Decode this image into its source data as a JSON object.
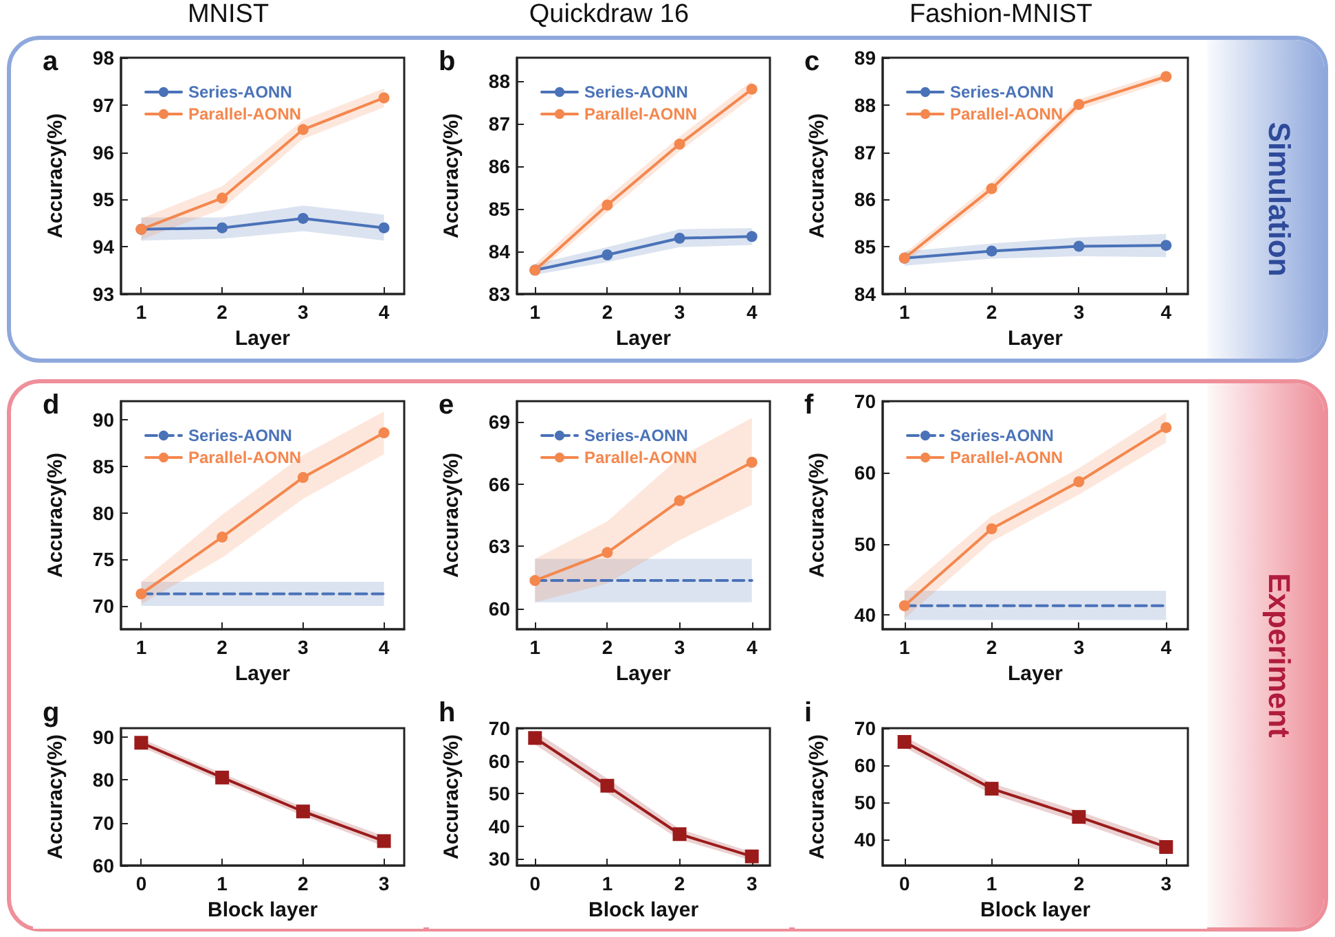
{
  "chart_data": [
    {
      "type": "line",
      "title": "a",
      "xlabel": "Layer",
      "ylabel": "Accuracy(%)",
      "annotations": [
        "MNIST"
      ],
      "x": [
        1,
        2,
        3,
        4
      ],
      "xlim": [
        0.75,
        4.25
      ],
      "xticks": [
        1,
        2,
        3,
        4
      ],
      "ylim": [
        93,
        98
      ],
      "yticks": [
        93,
        94,
        95,
        96,
        97,
        98
      ],
      "legend": "top left",
      "grid": false,
      "series": [
        {
          "name": "Series-AONN",
          "color": "#4a72b8",
          "marker": "circle",
          "values": [
            94.37,
            94.4,
            94.6,
            94.4
          ],
          "lower": [
            94.13,
            94.17,
            94.33,
            94.13
          ],
          "upper": [
            94.62,
            94.62,
            94.87,
            94.68
          ]
        },
        {
          "name": "Parallel-AONN",
          "color": "#f4874e",
          "marker": "circle",
          "values": [
            94.37,
            95.03,
            96.48,
            97.15
          ],
          "lower": [
            94.15,
            94.8,
            96.28,
            96.95
          ],
          "upper": [
            94.6,
            95.28,
            96.68,
            97.35
          ]
        }
      ]
    },
    {
      "type": "line",
      "title": "b",
      "xlabel": "Layer",
      "ylabel": "Accuracy(%)",
      "annotations": [
        "Quickdraw 16"
      ],
      "x": [
        1,
        2,
        3,
        4
      ],
      "xlim": [
        0.75,
        4.25
      ],
      "xticks": [
        1,
        2,
        3,
        4
      ],
      "ylim": [
        83,
        88.55
      ],
      "yticks": [
        83,
        84,
        85,
        86,
        87,
        88
      ],
      "legend": "top left",
      "grid": false,
      "series": [
        {
          "name": "Series-AONN",
          "color": "#4a72b8",
          "marker": "circle",
          "values": [
            83.56,
            83.92,
            84.31,
            84.35
          ],
          "lower": [
            83.45,
            83.75,
            84.1,
            84.15
          ],
          "upper": [
            83.7,
            84.1,
            84.52,
            84.55
          ]
        },
        {
          "name": "Parallel-AONN",
          "color": "#f4874e",
          "marker": "circle",
          "values": [
            83.56,
            85.09,
            86.52,
            87.81
          ],
          "lower": [
            83.45,
            84.92,
            86.35,
            87.62
          ],
          "upper": [
            83.7,
            85.27,
            86.7,
            88.0
          ]
        }
      ]
    },
    {
      "type": "line",
      "title": "c",
      "xlabel": "Layer",
      "ylabel": "Accuracy(%)",
      "annotations": [
        "Fashion-MNIST",
        "Simulation"
      ],
      "x": [
        1,
        2,
        3,
        4
      ],
      "xlim": [
        0.75,
        4.25
      ],
      "xticks": [
        1,
        2,
        3,
        4
      ],
      "ylim": [
        84,
        89
      ],
      "yticks": [
        84,
        85,
        86,
        87,
        88,
        89
      ],
      "legend": "top left",
      "grid": false,
      "series": [
        {
          "name": "Series-AONN",
          "color": "#4a72b8",
          "marker": "circle",
          "values": [
            84.76,
            84.91,
            85.01,
            85.03
          ],
          "lower": [
            84.6,
            84.75,
            84.8,
            84.78
          ],
          "upper": [
            84.9,
            85.07,
            85.2,
            85.27
          ]
        },
        {
          "name": "Parallel-AONN",
          "color": "#f4874e",
          "marker": "circle",
          "values": [
            84.76,
            86.23,
            88.01,
            88.6
          ],
          "lower": [
            84.66,
            86.1,
            87.9,
            88.5
          ],
          "upper": [
            84.86,
            86.36,
            88.12,
            88.7
          ]
        }
      ]
    },
    {
      "type": "line",
      "title": "d",
      "xlabel": "Layer",
      "ylabel": "Accuracy(%)",
      "x": [
        1,
        2,
        3,
        4
      ],
      "xlim": [
        0.75,
        4.25
      ],
      "xticks": [
        1,
        2,
        3,
        4
      ],
      "ylim": [
        67.5,
        92
      ],
      "yticks": [
        70,
        75,
        80,
        85,
        90
      ],
      "legend": "top left",
      "grid": false,
      "series": [
        {
          "name": "Series-AONN",
          "color": "#4a72b8",
          "marker": "none",
          "line_style": "dashed",
          "values": [
            71.3,
            71.3,
            71.3,
            71.3
          ],
          "lower": [
            70,
            70,
            70,
            70
          ],
          "upper": [
            72.6,
            72.6,
            72.6,
            72.6
          ]
        },
        {
          "name": "Parallel-AONN",
          "color": "#f4874e",
          "marker": "circle",
          "values": [
            71.3,
            77.4,
            83.8,
            88.6
          ],
          "lower": [
            70.2,
            75.2,
            81.5,
            86.3
          ],
          "upper": [
            72.6,
            79.8,
            86.2,
            90.9
          ]
        }
      ]
    },
    {
      "type": "line",
      "title": "e",
      "xlabel": "Layer",
      "ylabel": "Accuracy(%)",
      "x": [
        1,
        2,
        3,
        4
      ],
      "xlim": [
        0.75,
        4.25
      ],
      "xticks": [
        1,
        2,
        3,
        4
      ],
      "ylim": [
        59,
        70
      ],
      "yticks": [
        60,
        63,
        66,
        69
      ],
      "legend": "top left",
      "grid": false,
      "series": [
        {
          "name": "Series-AONN",
          "color": "#4a72b8",
          "marker": "none",
          "line_style": "dashed",
          "values": [
            61.35,
            61.35,
            61.35,
            61.35
          ],
          "lower": [
            60.3,
            60.3,
            60.3,
            60.3
          ],
          "upper": [
            62.4,
            62.4,
            62.4,
            62.4
          ]
        },
        {
          "name": "Parallel-AONN",
          "color": "#f4874e",
          "marker": "circle",
          "values": [
            61.35,
            62.7,
            65.2,
            67.05
          ],
          "lower": [
            60.3,
            61.2,
            63.3,
            65.0
          ],
          "upper": [
            62.4,
            64.2,
            67.3,
            69.2
          ]
        }
      ]
    },
    {
      "type": "line",
      "title": "f",
      "xlabel": "Layer",
      "ylabel": "Accuracy(%)",
      "annotations": [
        "Experiment"
      ],
      "x": [
        1,
        2,
        3,
        4
      ],
      "xlim": [
        0.75,
        4.25
      ],
      "xticks": [
        1,
        2,
        3,
        4
      ],
      "ylim": [
        38,
        70
      ],
      "yticks": [
        40,
        50,
        60,
        70
      ],
      "legend": "top left",
      "grid": false,
      "series": [
        {
          "name": "Series-AONN",
          "color": "#4a72b8",
          "marker": "none",
          "line_style": "dashed",
          "values": [
            41.3,
            41.3,
            41.3,
            41.3
          ],
          "lower": [
            39.3,
            39.3,
            39.3,
            39.3
          ],
          "upper": [
            43.4,
            43.4,
            43.4,
            43.4
          ]
        },
        {
          "name": "Parallel-AONN",
          "color": "#f4874e",
          "marker": "circle",
          "values": [
            41.3,
            52.1,
            58.7,
            66.3
          ],
          "lower": [
            39.5,
            50.3,
            56.9,
            64.2
          ],
          "upper": [
            43.4,
            53.9,
            60.6,
            68.4
          ]
        }
      ]
    },
    {
      "type": "line",
      "title": "g",
      "xlabel": "Block layer",
      "ylabel": "Accuracy(%)",
      "x": [
        0,
        1,
        2,
        3
      ],
      "xlim": [
        -0.25,
        3.25
      ],
      "xticks": [
        0,
        1,
        2,
        3
      ],
      "ylim": [
        60,
        92
      ],
      "yticks": [
        60,
        70,
        80,
        90
      ],
      "grid": false,
      "series": [
        {
          "color": "#9b1b1b",
          "marker": "square",
          "values": [
            88.6,
            80.5,
            72.6,
            65.7
          ],
          "lower": [
            87.6,
            79.5,
            71.6,
            64.5
          ],
          "upper": [
            89.6,
            81.5,
            73.6,
            66.9
          ]
        }
      ]
    },
    {
      "type": "line",
      "title": "h",
      "xlabel": "Block layer",
      "ylabel": "Accuracy(%)",
      "x": [
        0,
        1,
        2,
        3
      ],
      "xlim": [
        -0.25,
        3.25
      ],
      "xticks": [
        0,
        1,
        2,
        3
      ],
      "ylim": [
        28,
        70
      ],
      "yticks": [
        30,
        40,
        50,
        60,
        70
      ],
      "grid": false,
      "series": [
        {
          "color": "#9b1b1b",
          "marker": "square",
          "values": [
            67,
            52.4,
            37.6,
            30.8
          ],
          "lower": [
            65,
            50.2,
            36,
            29.5
          ],
          "upper": [
            69,
            54.6,
            39.2,
            32.1
          ]
        }
      ]
    },
    {
      "type": "line",
      "title": "i",
      "xlabel": "Block layer",
      "ylabel": "Accuracy(%)",
      "x": [
        0,
        1,
        2,
        3
      ],
      "xlim": [
        -0.25,
        3.25
      ],
      "xticks": [
        0,
        1,
        2,
        3
      ],
      "ylim": [
        33,
        70
      ],
      "yticks": [
        40,
        50,
        60,
        70
      ],
      "grid": false,
      "series": [
        {
          "color": "#9b1b1b",
          "marker": "square",
          "values": [
            66.3,
            53.7,
            46.1,
            38.0
          ],
          "lower": [
            64.8,
            52.2,
            44.6,
            36.4
          ],
          "upper": [
            67.8,
            55.2,
            47.6,
            39.6
          ]
        }
      ]
    }
  ]
}
